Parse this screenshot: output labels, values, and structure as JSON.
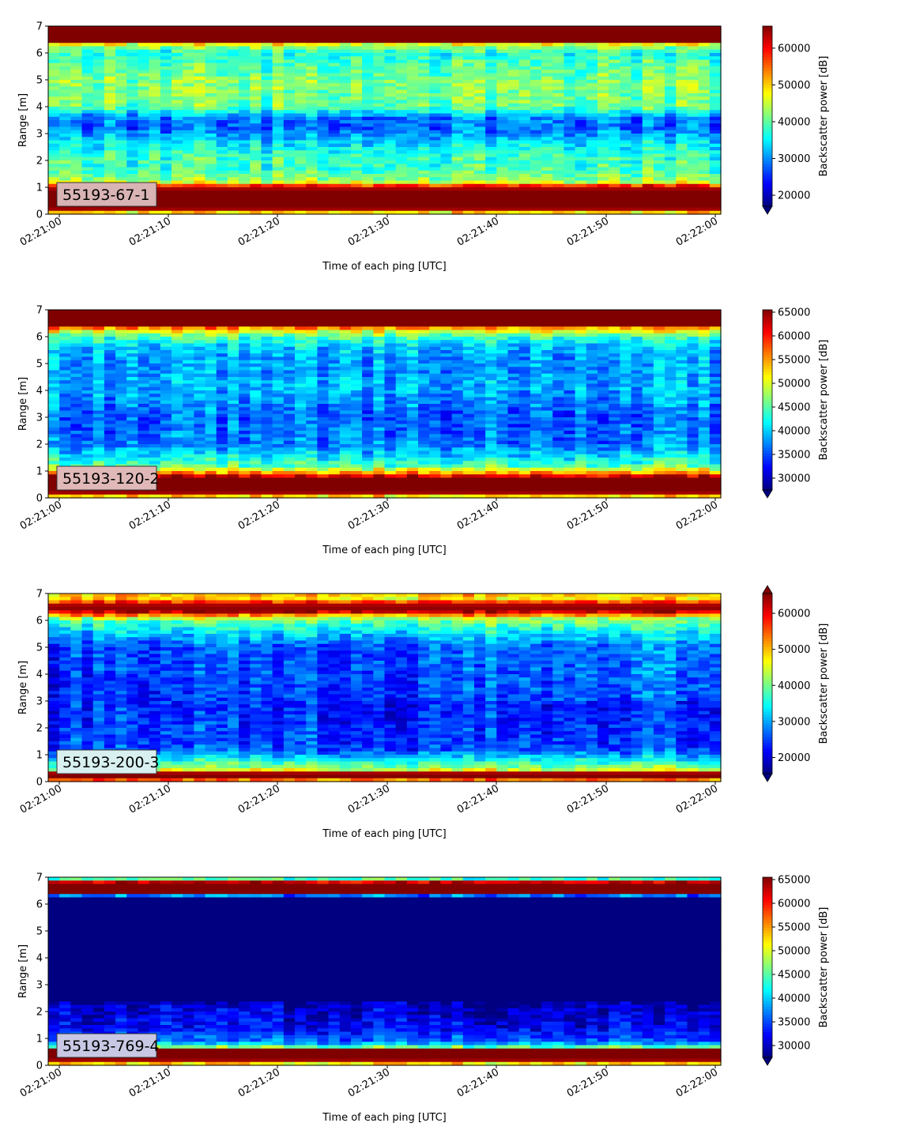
{
  "chart_data": [
    {
      "type": "heatmap",
      "label": "55193-67-1",
      "label_bg": "#d9b4b4",
      "xlabel": "Time of each ping [UTC]",
      "ylabel": "Range [m]",
      "x_ticks": [
        "02:21:00",
        "02:21:10",
        "02:21:20",
        "02:21:30",
        "02:21:40",
        "02:21:50",
        "02:22:00"
      ],
      "y_ticks": [
        0,
        1,
        2,
        3,
        4,
        5,
        6,
        7
      ],
      "ylim": [
        0,
        7
      ],
      "colorbar_label": "Backscatter power [dB]",
      "colorbar_ticks": [
        20000,
        30000,
        40000,
        50000,
        60000
      ],
      "vmin": 17000,
      "vmax": 66000,
      "extend_top": false,
      "extend_bottom": true,
      "colormap": "jet",
      "profile": [
        {
          "r": 0.0,
          "v": 0.5
        },
        {
          "r": 0.2,
          "v": 1.0
        },
        {
          "r": 0.9,
          "v": 1.0
        },
        {
          "r": 1.05,
          "v": 0.85
        },
        {
          "r": 1.2,
          "v": 0.55
        },
        {
          "r": 1.5,
          "v": 0.45
        },
        {
          "r": 2.2,
          "v": 0.42
        },
        {
          "r": 2.8,
          "v": 0.32
        },
        {
          "r": 3.2,
          "v": 0.22
        },
        {
          "r": 3.6,
          "v": 0.25
        },
        {
          "r": 4.0,
          "v": 0.48
        },
        {
          "r": 5.0,
          "v": 0.5
        },
        {
          "r": 6.0,
          "v": 0.4
        },
        {
          "r": 6.3,
          "v": 0.55
        },
        {
          "r": 6.4,
          "v": 1.0
        },
        {
          "r": 7.0,
          "v": 1.0
        }
      ]
    },
    {
      "type": "heatmap",
      "label": "55193-120-2",
      "label_bg": "#e0b8b8",
      "xlabel": "Time of each ping [UTC]",
      "ylabel": "Range [m]",
      "x_ticks": [
        "02:21:00",
        "02:21:10",
        "02:21:20",
        "02:21:30",
        "02:21:40",
        "02:21:50",
        "02:22:00"
      ],
      "y_ticks": [
        0,
        1,
        2,
        3,
        4,
        5,
        6,
        7
      ],
      "ylim": [
        0,
        7
      ],
      "colorbar_label": "Backscatter power [dB]",
      "colorbar_ticks": [
        30000,
        35000,
        40000,
        45000,
        50000,
        55000,
        60000,
        65000
      ],
      "vmin": 27500,
      "vmax": 65500,
      "extend_top": false,
      "extend_bottom": true,
      "colormap": "jet",
      "profile": [
        {
          "r": 0.0,
          "v": 0.5
        },
        {
          "r": 0.2,
          "v": 1.0
        },
        {
          "r": 0.75,
          "v": 1.0
        },
        {
          "r": 0.95,
          "v": 0.7
        },
        {
          "r": 1.2,
          "v": 0.45
        },
        {
          "r": 1.6,
          "v": 0.35
        },
        {
          "r": 2.0,
          "v": 0.25
        },
        {
          "r": 3.0,
          "v": 0.22
        },
        {
          "r": 4.0,
          "v": 0.3
        },
        {
          "r": 5.0,
          "v": 0.28
        },
        {
          "r": 5.6,
          "v": 0.32
        },
        {
          "r": 6.0,
          "v": 0.45
        },
        {
          "r": 6.3,
          "v": 0.7
        },
        {
          "r": 6.4,
          "v": 1.0
        },
        {
          "r": 7.0,
          "v": 1.0
        }
      ]
    },
    {
      "type": "heatmap",
      "label": "55193-200-3",
      "label_bg": "#d8f0f0",
      "xlabel": "Time of each ping [UTC]",
      "ylabel": "Range [m]",
      "x_ticks": [
        "02:21:00",
        "02:21:10",
        "02:21:20",
        "02:21:30",
        "02:21:40",
        "02:21:50",
        "02:22:00"
      ],
      "y_ticks": [
        0,
        1,
        2,
        3,
        4,
        5,
        6,
        7
      ],
      "ylim": [
        0,
        7
      ],
      "colorbar_label": "Backscatter power [dB]",
      "colorbar_ticks": [
        20000,
        30000,
        40000,
        50000,
        60000
      ],
      "vmin": 15500,
      "vmax": 65500,
      "extend_top": true,
      "extend_bottom": true,
      "colormap": "jet",
      "profile": [
        {
          "r": 0.0,
          "v": 0.6
        },
        {
          "r": 0.15,
          "v": 1.0
        },
        {
          "r": 0.3,
          "v": 1.0
        },
        {
          "r": 0.45,
          "v": 0.55
        },
        {
          "r": 0.8,
          "v": 0.38
        },
        {
          "r": 1.2,
          "v": 0.2
        },
        {
          "r": 3.0,
          "v": 0.15
        },
        {
          "r": 5.0,
          "v": 0.18
        },
        {
          "r": 5.5,
          "v": 0.3
        },
        {
          "r": 6.0,
          "v": 0.45
        },
        {
          "r": 6.2,
          "v": 0.75
        },
        {
          "r": 6.35,
          "v": 1.0
        },
        {
          "r": 6.6,
          "v": 0.95
        },
        {
          "r": 6.8,
          "v": 0.65
        },
        {
          "r": 7.0,
          "v": 0.7
        }
      ]
    },
    {
      "type": "heatmap",
      "label": "55193-769-4",
      "label_bg": "#c8c8e4",
      "xlabel": "Time of each ping [UTC]",
      "ylabel": "Range [m]",
      "x_ticks": [
        "02:21:00",
        "02:21:10",
        "02:21:20",
        "02:21:30",
        "02:21:40",
        "02:21:50",
        "02:22:00"
      ],
      "y_ticks": [
        0,
        1,
        2,
        3,
        4,
        5,
        6,
        7
      ],
      "ylim": [
        0,
        7
      ],
      "colorbar_label": "Backscatter power [dB]",
      "colorbar_ticks": [
        30000,
        35000,
        40000,
        45000,
        50000,
        55000,
        60000,
        65000
      ],
      "vmin": 27500,
      "vmax": 65500,
      "extend_top": false,
      "extend_bottom": true,
      "colormap": "jet",
      "profile": [
        {
          "r": 0.0,
          "v": 0.5
        },
        {
          "r": 0.2,
          "v": 1.0
        },
        {
          "r": 0.6,
          "v": 1.0
        },
        {
          "r": 0.7,
          "v": 0.4
        },
        {
          "r": 0.9,
          "v": 0.22
        },
        {
          "r": 1.4,
          "v": 0.12
        },
        {
          "r": 2.2,
          "v": 0.08
        },
        {
          "r": 2.4,
          "v": 0.0
        },
        {
          "r": 6.3,
          "v": 0.0
        },
        {
          "r": 6.35,
          "v": 1.0
        },
        {
          "r": 6.8,
          "v": 1.0
        },
        {
          "r": 6.9,
          "v": 0.45
        },
        {
          "r": 7.0,
          "v": 0.45
        }
      ]
    }
  ]
}
